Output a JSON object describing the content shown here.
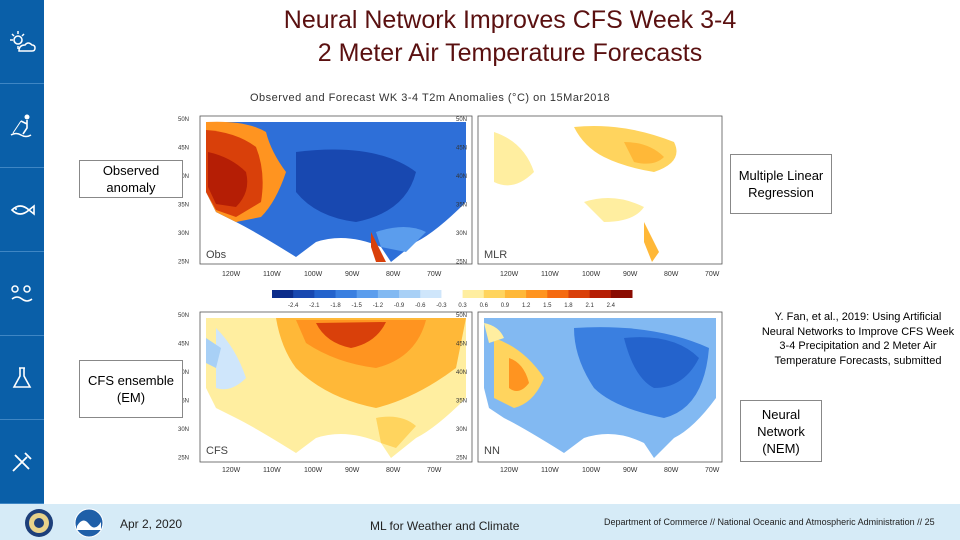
{
  "slide": {
    "title_line1": "Neural Network Improves CFS Week 3-4",
    "title_line2": "2 Meter Air Temperature Forecasts",
    "figure_title": "Observed and Forecast WK 3-4 T2m Anomalies (°C) on 15Mar2018"
  },
  "sidebar": {
    "icons": [
      "weather-sun-cloud-icon",
      "fishing-person-icon",
      "fish-icon",
      "ecosystem-icon",
      "lab-flask-icon",
      "tools-icon"
    ]
  },
  "panels": {
    "obs": {
      "corner_label": "Obs",
      "box_label": "Observed anomaly"
    },
    "mlr": {
      "corner_label": "MLR",
      "box_label": "Multiple Linear Regression"
    },
    "cfs": {
      "corner_label": "CFS",
      "box_label": "CFS ensemble (EM)"
    },
    "nn": {
      "corner_label": "NN",
      "box_label": "Neural Network (NEM)"
    }
  },
  "axes": {
    "lat_labels": [
      "50N",
      "45N",
      "40N",
      "35N",
      "30N",
      "25N"
    ],
    "lon_labels": [
      "120W",
      "110W",
      "100W",
      "90W",
      "80W",
      "70W"
    ]
  },
  "colorbar": {
    "ticks": [
      "-2.4",
      "-2.1",
      "-1.8",
      "-1.5",
      "-1.2",
      "-0.9",
      "-0.6",
      "-0.3",
      "0.3",
      "0.6",
      "0.9",
      "1.2",
      "1.5",
      "1.8",
      "2.1",
      "2.4"
    ],
    "colors": [
      "#0b2c8a",
      "#1848b0",
      "#2463cc",
      "#3a7fe0",
      "#5b9ded",
      "#82b9f2",
      "#a8d0f6",
      "#cfe6fb",
      "#ffffff",
      "#ffeea0",
      "#ffd45e",
      "#ffb838",
      "#ff9420",
      "#f56a10",
      "#d9400a",
      "#b51e05",
      "#8a0c02"
    ]
  },
  "citation": "Y. Fan, et al., 2019: Using Artificial Neural Networks to Improve CFS Week 3-4 Precipitation and 2 Meter Air Temperature Forecasts, submitted",
  "footer": {
    "date": "Apr 2, 2020",
    "center_text": "ML for Weather and Climate",
    "right_text": "Department of Commerce // National Oceanic and Atmospheric Administration // 25"
  },
  "logos": [
    "doc-seal-logo",
    "noaa-logo"
  ]
}
